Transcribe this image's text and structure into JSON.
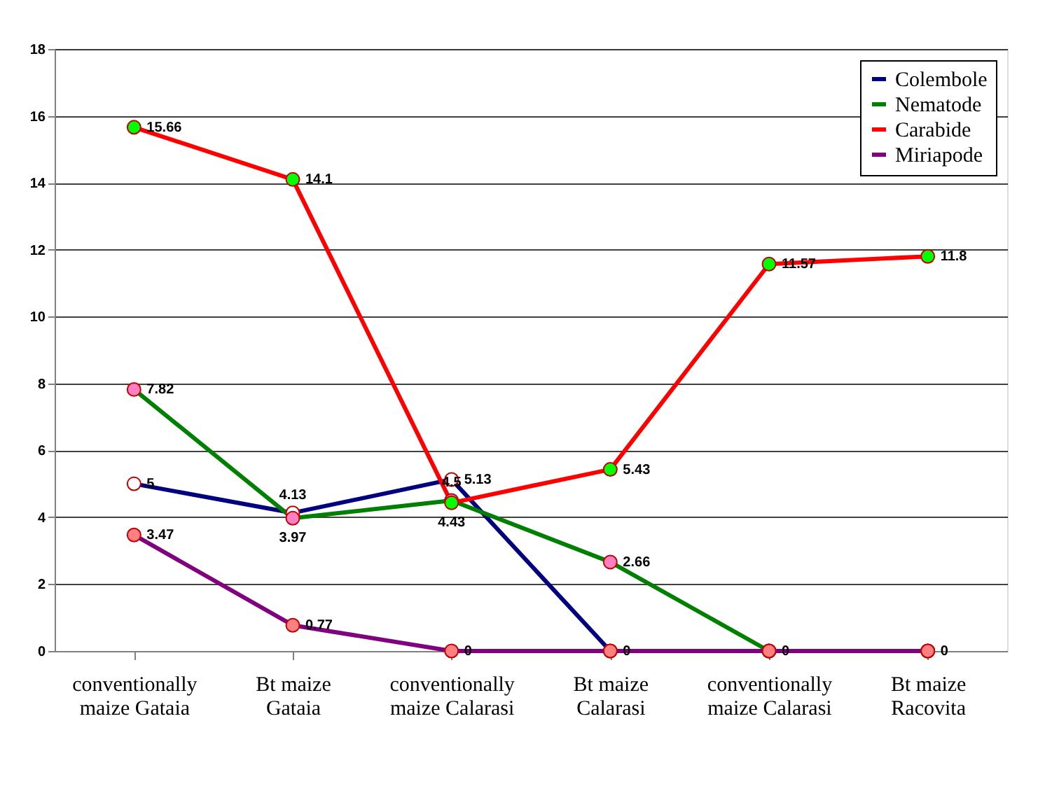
{
  "chart_data": {
    "type": "line",
    "categories": [
      "conventionally\nmaize Gataia",
      "Bt maize\nGataia",
      "conventionally\nmaize Calarasi",
      "Bt maize\nCalarasi",
      "conventionally\nmaize Calarasi",
      "Bt maize\nRacovita"
    ],
    "series": [
      {
        "name": "Colembole",
        "color": "#000080",
        "colors": [
          "#ffffff",
          "#ffffff",
          "#ffffff",
          "#ffffff",
          "#ffffff",
          "#ffffff"
        ],
        "values": [
          5,
          4.13,
          5.13,
          0,
          0,
          0
        ],
        "value_labels": [
          "5",
          "4.13",
          "5.13",
          "0",
          "0",
          "0"
        ]
      },
      {
        "name": "Nematode",
        "color": "#008000",
        "colors": [
          "#ff80c0",
          "#ff80c0",
          "#ff80c0",
          "#ff80c0",
          "#ff80c0",
          "#ff80c0"
        ],
        "values": [
          7.82,
          3.97,
          4.5,
          2.66,
          0,
          0
        ],
        "value_labels": [
          "7.82",
          "3.97",
          "4.5",
          "2.66",
          null,
          null
        ]
      },
      {
        "name": "Carabide",
        "color": "#ff0000",
        "colors": [
          "#00ff00",
          "#00ff00",
          "#00ff00",
          "#00ff00",
          "#00ff00",
          "#00ff00"
        ],
        "values": [
          15.66,
          14.1,
          4.43,
          5.43,
          11.57,
          11.8
        ],
        "value_labels": [
          "15.66",
          "14.1",
          "4.43",
          "5.43",
          "11.57",
          "11.8"
        ]
      },
      {
        "name": "Miriapode",
        "color": "#800080",
        "colors": [
          "#ff8080",
          "#ff8080",
          "#ff8080",
          "#ff8080",
          "#ff8080",
          "#ff8080"
        ],
        "values": [
          3.47,
          0.77,
          0,
          0,
          0,
          0
        ],
        "value_labels": [
          "3.47",
          "0.77",
          "0",
          null,
          null,
          null
        ]
      }
    ],
    "ylim": [
      0,
      18
    ],
    "yticks": [
      0,
      2,
      4,
      6,
      8,
      10,
      12,
      14,
      16,
      18
    ],
    "grid": "y",
    "legend": "top right",
    "marker": "circle",
    "line_style": "solid"
  }
}
